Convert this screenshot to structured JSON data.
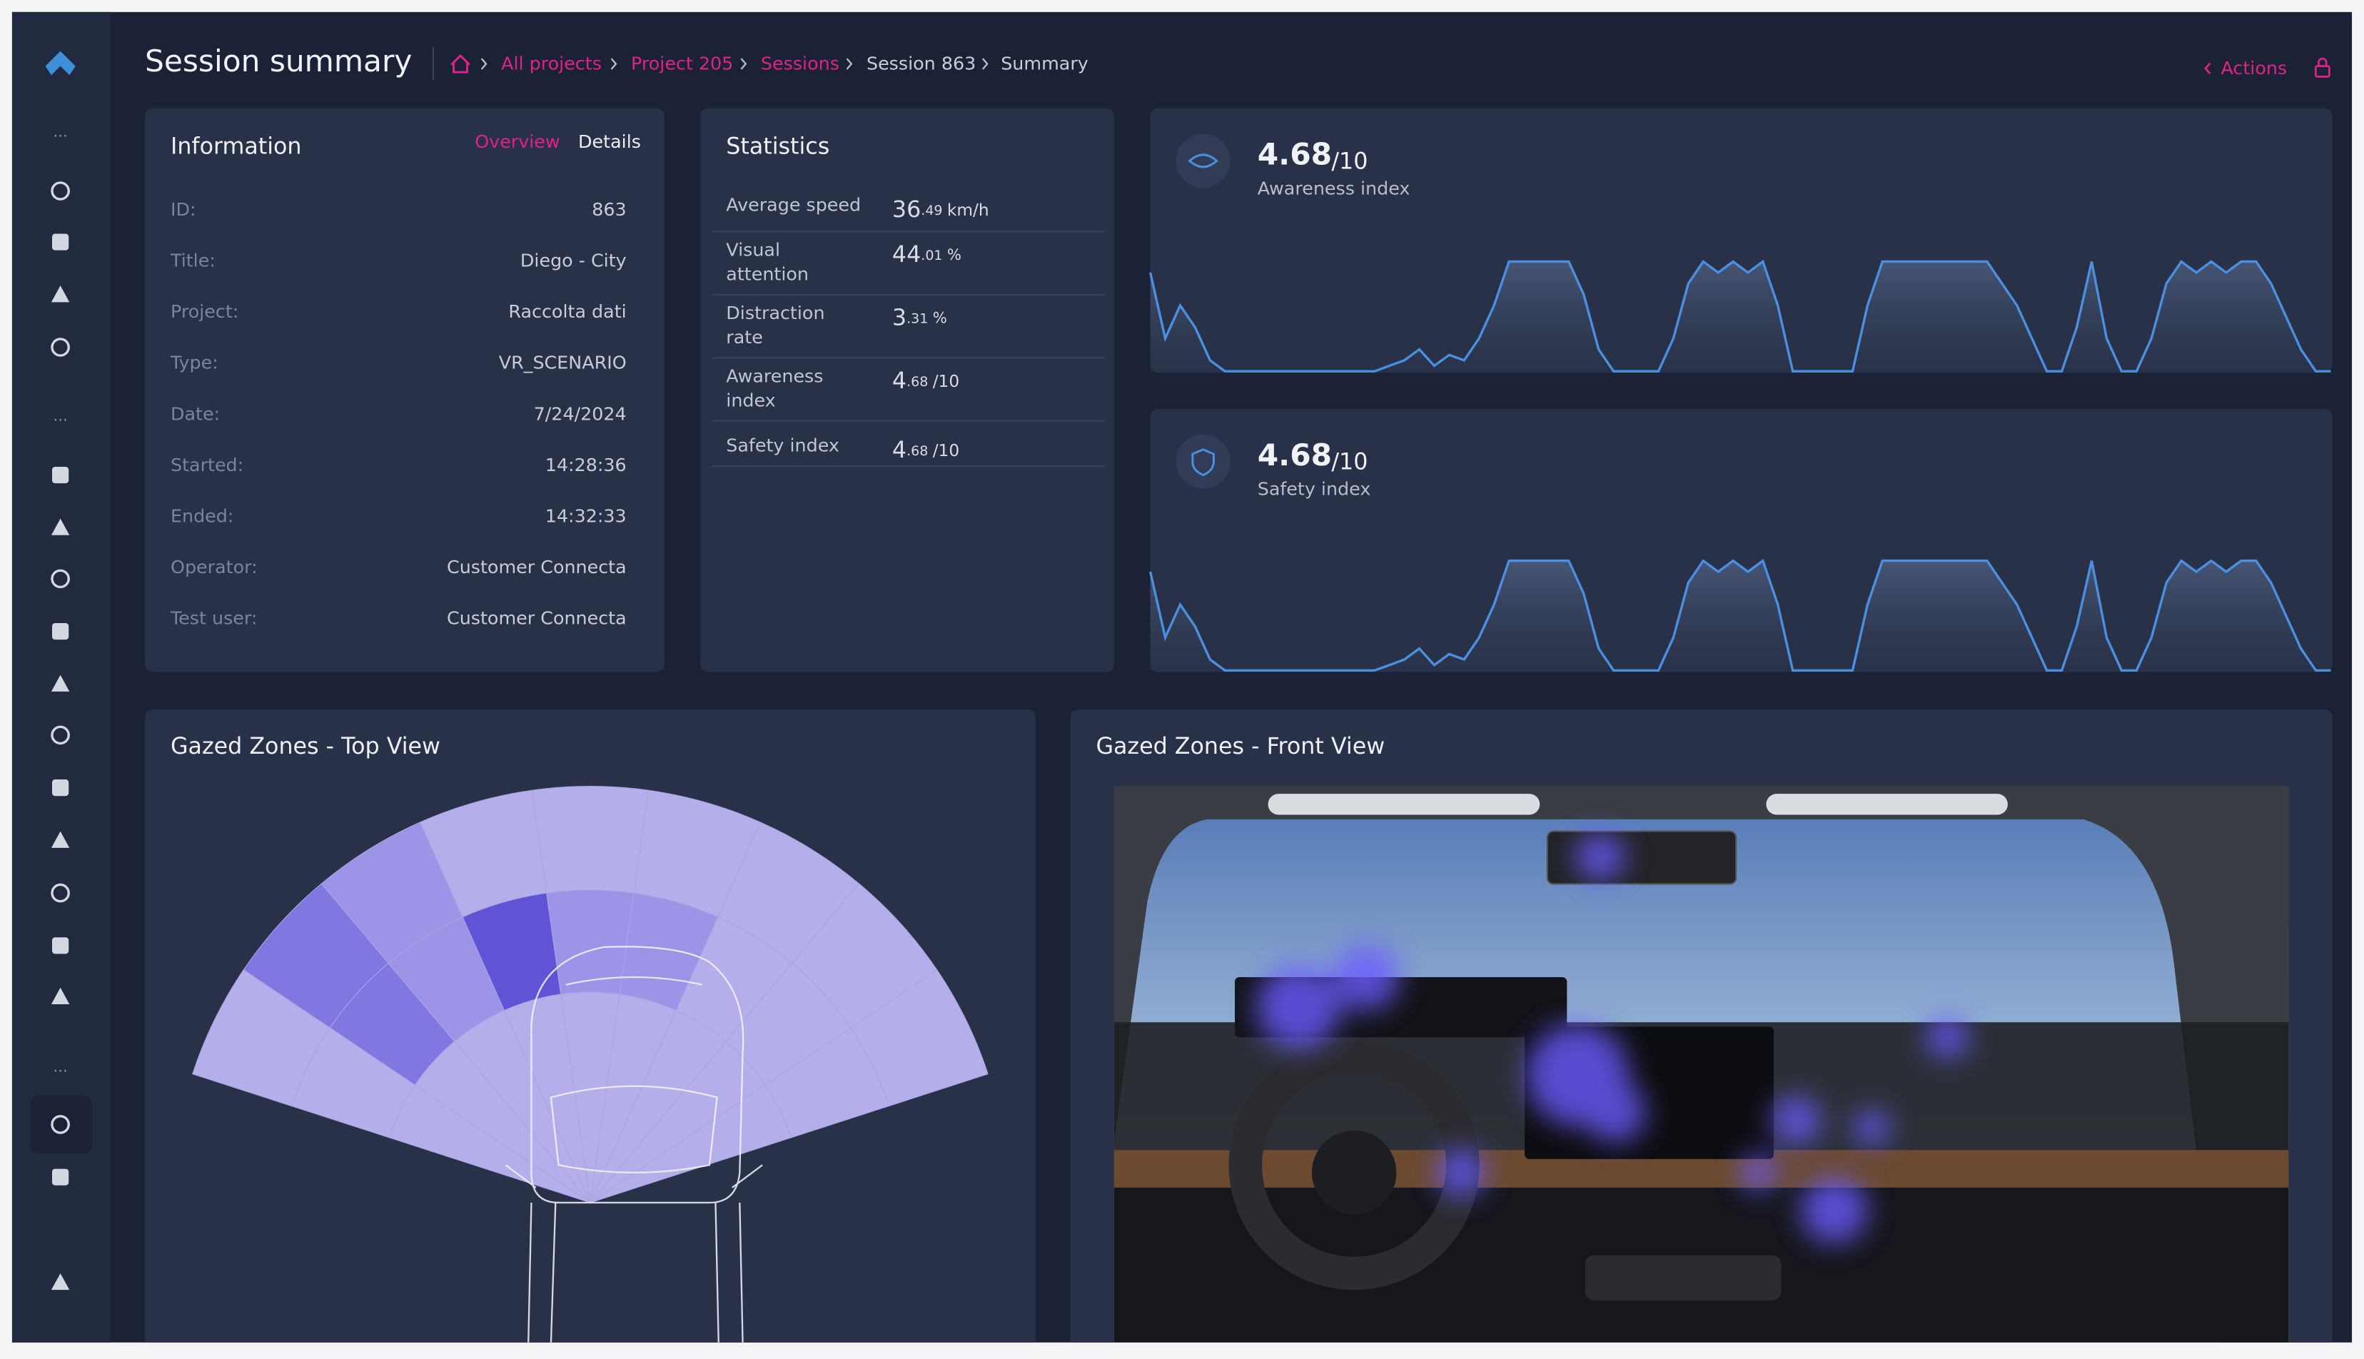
{
  "header": {
    "title": "Session summary",
    "breadcrumbs": [
      "All projects",
      "Project 205",
      "Sessions",
      "Session 863",
      "Summary"
    ],
    "actions": "Actions"
  },
  "information": {
    "title": "Information",
    "tabs": [
      "Overview",
      "Details"
    ],
    "rows": [
      {
        "label": "ID:",
        "value": "863"
      },
      {
        "label": "Title:",
        "value": "Diego - City"
      },
      {
        "label": "Project:",
        "value": "Raccolta dati"
      },
      {
        "label": "Type:",
        "value": "VR_SCENARIO"
      },
      {
        "label": "Date:",
        "value": "7/24/2024"
      },
      {
        "label": "Started:",
        "value": "14:28:36"
      },
      {
        "label": "Ended:",
        "value": "14:32:33"
      },
      {
        "label": "Operator:",
        "value": "Customer Connecta"
      },
      {
        "label": "Test user:",
        "value": "Customer Connecta"
      }
    ]
  },
  "statistics": {
    "title": "Statistics",
    "rows": [
      {
        "label": [
          "Average speed"
        ],
        "integer": "36",
        "decimals": ".49",
        "unit": "km/h"
      },
      {
        "label": [
          "Visual",
          "attention"
        ],
        "integer": "44",
        "decimals": ".01",
        "unit": "%"
      },
      {
        "label": [
          "Distraction",
          "rate"
        ],
        "integer": "3",
        "decimals": ".31",
        "unit": "%"
      },
      {
        "label": [
          "Awareness",
          "index"
        ],
        "integer": "4",
        "decimals": ".68",
        "unit": "/10"
      },
      {
        "label": [
          "Safety index"
        ],
        "integer": "4",
        "decimals": ".68",
        "unit": "/10"
      }
    ]
  },
  "index_cards": [
    {
      "value": "4.68",
      "scale": "/10",
      "label": "Awareness index"
    },
    {
      "value": "4.68",
      "scale": "/10",
      "label": "Safety index"
    }
  ],
  "chart_data": [
    {
      "type": "area",
      "color": "#4a8fe0",
      "ylim": [
        0,
        10
      ],
      "values": [
        9,
        3,
        6,
        4,
        1,
        0,
        0,
        0,
        0,
        0,
        0,
        0,
        0,
        0,
        0,
        0,
        0.5,
        1,
        2,
        0.5,
        1.5,
        1,
        3,
        6,
        10,
        10,
        10,
        10,
        10,
        7,
        2,
        0,
        0,
        0,
        0,
        3,
        8,
        10,
        9,
        10,
        9,
        10,
        6,
        0,
        0,
        0,
        0,
        0,
        6,
        10,
        10,
        10,
        10,
        10,
        10,
        10,
        10,
        8,
        6,
        3,
        0,
        0,
        4,
        10,
        3,
        0,
        0,
        3,
        8,
        10,
        9,
        10,
        9,
        10,
        10,
        8,
        5,
        2,
        0,
        0
      ]
    },
    {
      "type": "area",
      "color": "#4a8fe0",
      "ylim": [
        0,
        10
      ],
      "values": [
        9,
        3,
        6,
        4,
        1,
        0,
        0,
        0,
        0,
        0,
        0,
        0,
        0,
        0,
        0,
        0,
        0.5,
        1,
        2,
        0.5,
        1.5,
        1,
        3,
        6,
        10,
        10,
        10,
        10,
        10,
        7,
        2,
        0,
        0,
        0,
        0,
        3,
        8,
        10,
        9,
        10,
        9,
        10,
        6,
        0,
        0,
        0,
        0,
        0,
        6,
        10,
        10,
        10,
        10,
        10,
        10,
        10,
        10,
        8,
        6,
        3,
        0,
        0,
        4,
        10,
        3,
        0,
        0,
        3,
        8,
        10,
        9,
        10,
        9,
        10,
        10,
        8,
        5,
        2,
        0,
        0
      ]
    }
  ],
  "zones": {
    "top_title": "Gazed Zones - Top View",
    "front_title": "Gazed Zones - Front View"
  }
}
